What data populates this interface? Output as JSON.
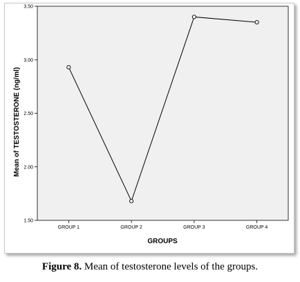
{
  "chart_data": {
    "type": "line",
    "categories": [
      "GROUP 1",
      "GROUP 2",
      "GROUP 3",
      "GROUP 4"
    ],
    "values": [
      2.93,
      1.68,
      3.4,
      3.35
    ],
    "xlabel": "GROUPS",
    "ylabel": "Mean of TESTOSTERONE (ng/ml)",
    "ylim": [
      1.5,
      3.5
    ],
    "yticks": [
      "1.50",
      "2.00",
      "2.50",
      "3.00",
      "3.50"
    ],
    "grid": false,
    "marker": "open-circle",
    "colors": {
      "plot_background": "#f0f0f0",
      "line": "#000000"
    }
  },
  "caption": {
    "label": "Figure 8.",
    "text": " Mean of testosterone levels of the groups."
  }
}
